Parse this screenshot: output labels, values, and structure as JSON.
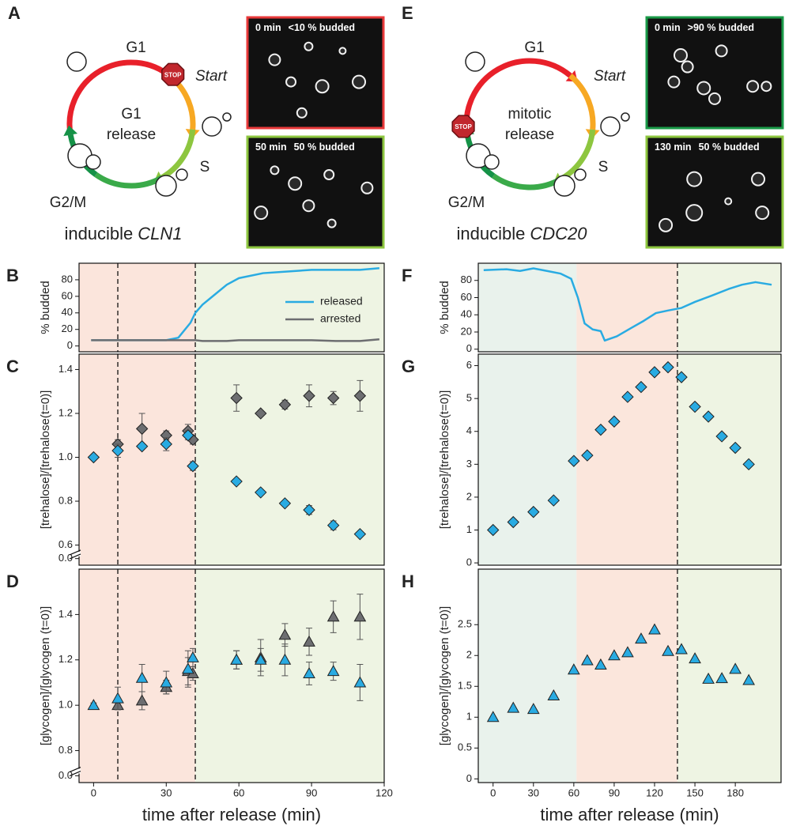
{
  "diagrams": [
    {
      "panel": "A",
      "phases": {
        "g1": "G1",
        "s": "S",
        "g2m": "G2/M"
      },
      "start": "Start",
      "stop": "STOP",
      "center": [
        "G1",
        "release"
      ],
      "caption": {
        "text": "inducible",
        "gene": "CLN1"
      },
      "images": [
        {
          "time": "0 min",
          "note": "<10 % budded",
          "border": "#e8393a"
        },
        {
          "time": "50 min",
          "note": "50 % budded",
          "border": "#8dc63f"
        }
      ]
    },
    {
      "panel": "E",
      "phases": {
        "g1": "G1",
        "s": "S",
        "g2m": "G2/M"
      },
      "start": "Start",
      "stop": "STOP",
      "center": [
        "mitotic",
        "release"
      ],
      "caption": {
        "text": "inducible",
        "gene": "CDC20"
      },
      "images": [
        {
          "time": "0 min",
          "note": ">90 % budded",
          "border": "#1a9a48"
        },
        {
          "time": "130 min",
          "note": "50 % budded",
          "border": "#8dc63f"
        }
      ]
    }
  ],
  "chart_data": [
    {
      "panel": "B",
      "type": "line",
      "ylabel": "% budded",
      "xlim": [
        -6,
        120
      ],
      "ylim": [
        -7,
        100
      ],
      "yticks": [
        0,
        20,
        40,
        60,
        80
      ],
      "legend": "right",
      "regions": [
        {
          "from": -6,
          "to": 42,
          "color": "#fbe5dc"
        },
        {
          "from": 42,
          "to": 120,
          "color": "#eef4e3"
        }
      ],
      "vlines": [
        10,
        42
      ],
      "series": [
        {
          "name": "released",
          "color": "#29abe2",
          "x": [
            -1,
            10,
            20,
            30,
            35,
            40,
            42,
            45,
            50,
            55,
            60,
            70,
            80,
            90,
            100,
            110,
            118
          ],
          "values": [
            7,
            7,
            7,
            7,
            10,
            28,
            40,
            50,
            62,
            74,
            82,
            88,
            90,
            92,
            92,
            92,
            94
          ]
        },
        {
          "name": "arrested",
          "color": "#6d6e71",
          "x": [
            -1,
            10,
            20,
            30,
            35,
            40,
            42,
            45,
            50,
            55,
            60,
            70,
            80,
            90,
            100,
            110,
            118
          ],
          "values": [
            7,
            7,
            7,
            7,
            7,
            7,
            7,
            6,
            6,
            6,
            7,
            7,
            7,
            7,
            6,
            6,
            8
          ]
        }
      ]
    },
    {
      "panel": "C",
      "type": "scatter",
      "ylabel": "[trehalose]/[trehalose(t=0)]",
      "xlim": [
        -6,
        120
      ],
      "ylim": [
        -0.03,
        1.47
      ],
      "ybreak": [
        0.01,
        0.57
      ],
      "yticks": [
        {
          "value": 0,
          "label": "0.0"
        },
        0.6,
        0.8,
        {
          "value": 1,
          "label": "1.0"
        },
        1.2,
        1.4
      ],
      "regions": [
        {
          "from": -6,
          "to": 42,
          "color": "#fbe5dc"
        },
        {
          "from": 42,
          "to": 120,
          "color": "#eef4e3"
        }
      ],
      "vlines": [
        10,
        42
      ],
      "series": [
        {
          "color": "#6d6e71",
          "marker": "diamond",
          "x": [
            10,
            20,
            30,
            39,
            41,
            59,
            69,
            79,
            89,
            99,
            110
          ],
          "values": [
            1.06,
            1.13,
            1.1,
            1.12,
            1.08,
            1.27,
            1.2,
            1.24,
            1.28,
            1.27,
            1.28
          ],
          "errors": [
            0.02,
            0.07,
            0.02,
            0.03,
            0.02,
            0.06,
            0.01,
            0.02,
            0.05,
            0.03,
            0.07
          ]
        },
        {
          "color": "#29abe2",
          "marker": "diamond",
          "x": [
            0,
            10,
            20,
            30,
            39,
            41,
            59,
            69,
            79,
            89,
            99,
            110
          ],
          "values": [
            1.0,
            1.03,
            1.05,
            1.06,
            1.1,
            0.96,
            0.89,
            0.84,
            0.79,
            0.76,
            0.69,
            0.65
          ],
          "errors": [
            0.01,
            0.03,
            0.01,
            0.03,
            0.02,
            0.02,
            0.01,
            0.01,
            0.01,
            0.02,
            0.02,
            0.01
          ]
        }
      ]
    },
    {
      "panel": "D",
      "type": "scatter",
      "ylabel": "[glycogen]/[glycogen (t=0)]",
      "xlabel": "time after release (min)",
      "xlim": [
        -6,
        120
      ],
      "xticks": [
        0,
        30,
        60,
        90,
        120
      ],
      "ylim": [
        -0.03,
        1.6
      ],
      "ybreak": [
        0.01,
        0.72
      ],
      "yticks": [
        {
          "value": 0,
          "label": "0.0"
        },
        0.8,
        {
          "value": 1,
          "label": "1.0"
        },
        1.2,
        1.4
      ],
      "regions": [
        {
          "from": -6,
          "to": 42,
          "color": "#fbe5dc"
        },
        {
          "from": 42,
          "to": 120,
          "color": "#eef4e3"
        }
      ],
      "vlines": [
        10,
        42
      ],
      "series": [
        {
          "color": "#6d6e71",
          "marker": "triangle",
          "x": [
            10,
            20,
            30,
            39,
            41,
            59,
            69,
            79,
            89,
            99,
            110
          ],
          "values": [
            1.0,
            1.02,
            1.08,
            1.15,
            1.14,
            1.2,
            1.21,
            1.31,
            1.28,
            1.39,
            1.39
          ],
          "errors": [
            0.02,
            0.04,
            0.03,
            0.06,
            0.03,
            0.04,
            0.08,
            0.05,
            0.06,
            0.07,
            0.1
          ]
        },
        {
          "color": "#29abe2",
          "marker": "triangle",
          "x": [
            0,
            10,
            20,
            30,
            39,
            41,
            59,
            69,
            79,
            89,
            99,
            110
          ],
          "values": [
            1.0,
            1.03,
            1.12,
            1.1,
            1.16,
            1.21,
            1.2,
            1.2,
            1.2,
            1.14,
            1.15,
            1.1
          ],
          "errors": [
            0.01,
            0.05,
            0.06,
            0.05,
            0.08,
            0.04,
            0.04,
            0.05,
            0.07,
            0.05,
            0.04,
            0.08
          ]
        }
      ]
    },
    {
      "panel": "F",
      "type": "line",
      "ylabel": "% budded",
      "xlim": [
        -11,
        214
      ],
      "ylim": [
        -3,
        100
      ],
      "yticks": [
        0,
        20,
        40,
        60,
        80
      ],
      "regions": [
        {
          "from": -11,
          "to": 62,
          "color": "#e9f2ec"
        },
        {
          "from": 62,
          "to": 137,
          "color": "#fbe6dc"
        },
        {
          "from": 137,
          "to": 214,
          "color": "#eef4e3"
        }
      ],
      "vlines": [
        137
      ],
      "series": [
        {
          "color": "#29abe2",
          "x": [
            -7,
            10,
            20,
            30,
            40,
            50,
            58,
            63,
            68,
            74,
            80,
            83,
            92,
            103,
            112,
            121,
            130,
            140,
            150,
            162,
            175,
            185,
            195,
            207
          ],
          "values": [
            92,
            93,
            91,
            94,
            91,
            88,
            82,
            60,
            30,
            23,
            21,
            10,
            15,
            25,
            33,
            42,
            45,
            48,
            55,
            62,
            70,
            75,
            78,
            75
          ]
        }
      ]
    },
    {
      "panel": "G",
      "type": "scatter",
      "ylabel": "[trehalose]/[trehalose(t=0)]",
      "xlim": [
        -11,
        214
      ],
      "ylim": [
        -0.07,
        6.35
      ],
      "yticks": [
        0,
        1,
        2,
        3,
        4,
        5,
        6
      ],
      "regions": [
        {
          "from": -11,
          "to": 62,
          "color": "#e9f2ec"
        },
        {
          "from": 62,
          "to": 137,
          "color": "#fbe6dc"
        },
        {
          "from": 137,
          "to": 214,
          "color": "#eef4e3"
        }
      ],
      "vlines": [
        137
      ],
      "series": [
        {
          "color": "#29abe2",
          "marker": "diamond",
          "x": [
            0,
            15,
            30,
            45,
            60,
            70,
            80,
            90,
            100,
            110,
            120,
            130,
            140,
            150,
            160,
            170,
            180,
            190
          ],
          "values": [
            1.0,
            1.24,
            1.55,
            1.9,
            3.1,
            3.27,
            4.05,
            4.3,
            5.05,
            5.35,
            5.8,
            5.95,
            5.65,
            4.75,
            4.45,
            3.85,
            3.5,
            3.0
          ]
        }
      ]
    },
    {
      "panel": "H",
      "type": "scatter",
      "ylabel": "[glycogen]/[glycogen (t=0)]",
      "xlabel": "time after release (min)",
      "xlim": [
        -11,
        214
      ],
      "xticks": [
        0,
        30,
        60,
        90,
        120,
        150,
        180
      ],
      "ylim": [
        -0.06,
        3.4
      ],
      "yticks": [
        0,
        0.5,
        1,
        1.5,
        2,
        2.5
      ],
      "regions": [
        {
          "from": -11,
          "to": 62,
          "color": "#e9f2ec"
        },
        {
          "from": 62,
          "to": 137,
          "color": "#fbe6dc"
        },
        {
          "from": 137,
          "to": 214,
          "color": "#eef4e3"
        }
      ],
      "vlines": [
        137
      ],
      "series": [
        {
          "color": "#29abe2",
          "marker": "triangle",
          "x": [
            0,
            15,
            30,
            45,
            60,
            70,
            80,
            90,
            100,
            110,
            120,
            130,
            140,
            150,
            160,
            170,
            180,
            190
          ],
          "values": [
            1.0,
            1.15,
            1.13,
            1.35,
            1.77,
            1.92,
            1.85,
            2.0,
            2.05,
            2.27,
            2.42,
            2.07,
            2.1,
            1.95,
            1.62,
            1.63,
            1.78,
            1.6
          ]
        }
      ]
    }
  ]
}
